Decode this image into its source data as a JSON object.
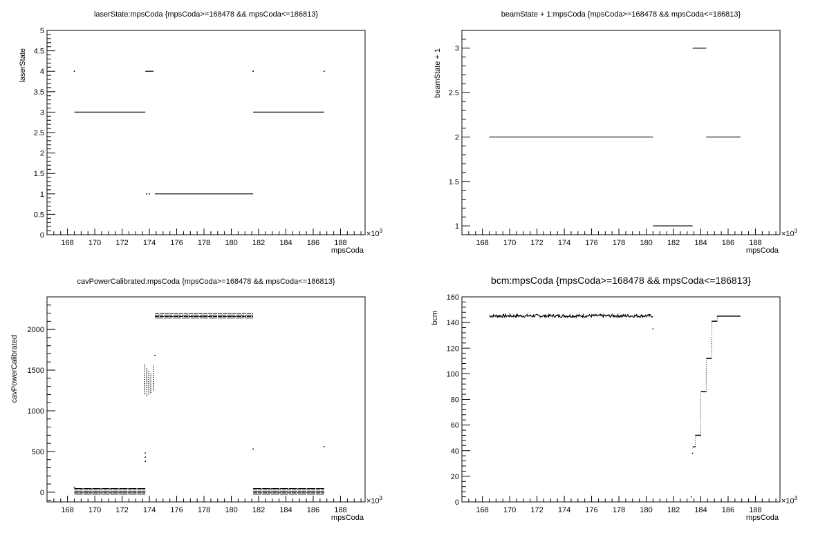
{
  "chart_data": [
    {
      "type": "scatter",
      "title": "laserState:mpsCoda {mpsCoda>=168478 && mpsCoda<=186813}",
      "xlabel": "mpsCoda",
      "ylabel": "laserState",
      "x_multiplier": "×10",
      "x_multiplier_exp": "3",
      "xlim": [
        166.5,
        189.8
      ],
      "ylim": [
        0,
        5
      ],
      "x_ticks": [
        "168",
        "170",
        "172",
        "174",
        "176",
        "178",
        "180",
        "182",
        "184",
        "186",
        "188"
      ],
      "y_ticks": [
        "0",
        "0.5",
        "1",
        "1.5",
        "2",
        "2.5",
        "3",
        "3.5",
        "4",
        "4.5",
        "5"
      ],
      "segments": [
        {
          "x": [
            168.5,
            173.7
          ],
          "y": 3
        },
        {
          "x": [
            173.7,
            174.3
          ],
          "y": 4
        },
        {
          "x": [
            174.4,
            181.6
          ],
          "y": 1
        },
        {
          "x": [
            181.6,
            186.8
          ],
          "y": 3
        }
      ],
      "points": [
        {
          "x": 168.5,
          "y": 4
        },
        {
          "x": 173.8,
          "y": 1
        },
        {
          "x": 174.0,
          "y": 1
        },
        {
          "x": 181.6,
          "y": 4
        },
        {
          "x": 186.8,
          "y": 4
        }
      ]
    },
    {
      "type": "scatter",
      "title": "beamState + 1:mpsCoda {mpsCoda>=168478 && mpsCoda<=186813}",
      "xlabel": "mpsCoda",
      "ylabel": "beamState + 1",
      "x_multiplier": "×10",
      "x_multiplier_exp": "3",
      "xlim": [
        166.5,
        189.8
      ],
      "ylim": [
        0.9,
        3.2
      ],
      "x_ticks": [
        "168",
        "170",
        "172",
        "174",
        "176",
        "178",
        "180",
        "182",
        "184",
        "186",
        "188"
      ],
      "y_ticks": [
        "1",
        "1.5",
        "2",
        "2.5",
        "3"
      ],
      "segments": [
        {
          "x": [
            168.5,
            180.5
          ],
          "y": 2
        },
        {
          "x": [
            180.5,
            183.4
          ],
          "y": 1
        },
        {
          "x": [
            183.4,
            184.4
          ],
          "y": 3
        },
        {
          "x": [
            184.4,
            186.9
          ],
          "y": 2
        }
      ],
      "points": []
    },
    {
      "type": "scatter",
      "title": "cavPowerCalibrated:mpsCoda {mpsCoda>=168478 && mpsCoda<=186813}",
      "xlabel": "mpsCoda",
      "ylabel": "cavPowerCalibrated",
      "x_multiplier": "×10",
      "x_multiplier_exp": "3",
      "xlim": [
        166.5,
        189.8
      ],
      "ylim": [
        -120,
        2400
      ],
      "x_ticks": [
        "168",
        "170",
        "172",
        "174",
        "176",
        "178",
        "180",
        "182",
        "184",
        "186",
        "188"
      ],
      "y_ticks": [
        "0",
        "500",
        "1000",
        "1500",
        "2000"
      ],
      "bands": [
        {
          "x": [
            168.5,
            173.7
          ],
          "y": [
            -25,
            45
          ],
          "rows": 5
        },
        {
          "x": [
            174.4,
            181.6
          ],
          "y": [
            2140,
            2195
          ],
          "rows": 4
        },
        {
          "x": [
            181.6,
            186.8
          ],
          "y": [
            -25,
            45
          ],
          "rows": 5
        }
      ],
      "columns": [
        {
          "x": 173.65,
          "y": [
            1200,
            1580
          ]
        },
        {
          "x": 173.8,
          "y": [
            1180,
            1540
          ]
        },
        {
          "x": 173.95,
          "y": [
            1200,
            1500
          ]
        },
        {
          "x": 174.1,
          "y": [
            1220,
            1460
          ]
        },
        {
          "x": 174.3,
          "y": [
            1250,
            1560
          ]
        }
      ],
      "points": [
        {
          "x": 168.5,
          "y": 60
        },
        {
          "x": 173.7,
          "y": 480
        },
        {
          "x": 173.7,
          "y": 430
        },
        {
          "x": 173.7,
          "y": 380
        },
        {
          "x": 174.4,
          "y": 1680
        },
        {
          "x": 181.6,
          "y": 530
        },
        {
          "x": 186.8,
          "y": 560
        }
      ]
    },
    {
      "type": "scatter",
      "title": "bcm:mpsCoda {mpsCoda>=168478 && mpsCoda<=186813}",
      "xlabel": "mpsCoda",
      "ylabel": "bcm",
      "x_multiplier": "×10",
      "x_multiplier_exp": "3",
      "xlim": [
        166.5,
        189.8
      ],
      "ylim": [
        0,
        160
      ],
      "x_ticks": [
        "168",
        "170",
        "172",
        "174",
        "176",
        "178",
        "180",
        "182",
        "184",
        "186",
        "188"
      ],
      "y_ticks": [
        "0",
        "20",
        "40",
        "60",
        "80",
        "100",
        "120",
        "140",
        "160"
      ],
      "trace": {
        "x": [
          168.5,
          180.5
        ],
        "y_mean": 145.2,
        "y_jitter": 1.2
      },
      "steps": [
        {
          "x": [
            183.4,
            183.6
          ],
          "y": 43
        },
        {
          "x": [
            183.6,
            184.0
          ],
          "y": 52
        },
        {
          "x": [
            184.0,
            184.4
          ],
          "y": 86
        },
        {
          "x": [
            184.4,
            184.8
          ],
          "y": 112
        },
        {
          "x": [
            184.8,
            185.2
          ],
          "y": 141
        },
        {
          "x": [
            185.2,
            186.9
          ],
          "y": 145
        }
      ],
      "points": [
        {
          "x": 180.5,
          "y": 135
        },
        {
          "x": 183.4,
          "y": 38
        },
        {
          "x": 183.3,
          "y": 4
        }
      ]
    }
  ]
}
